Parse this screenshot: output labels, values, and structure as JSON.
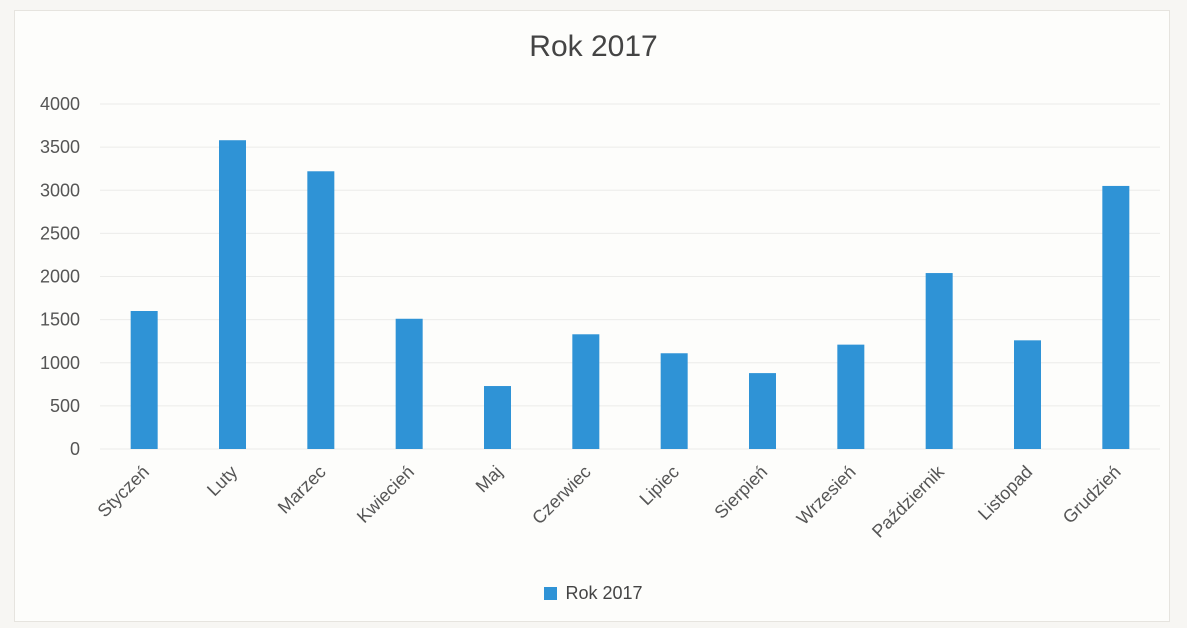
{
  "chart_data": {
    "type": "bar",
    "title": "Rok 2017",
    "categories": [
      "Styczeń",
      "Luty",
      "Marzec",
      "Kwiecień",
      "Maj",
      "Czerwiec",
      "Lipiec",
      "Sierpień",
      "Wrzesień",
      "Październik",
      "Listopad",
      "Grudzień"
    ],
    "series": [
      {
        "name": "Rok 2017",
        "values": [
          1600,
          3580,
          3220,
          1510,
          730,
          1330,
          1110,
          880,
          1210,
          2040,
          1260,
          3050
        ]
      }
    ],
    "ylim": [
      0,
      4000
    ],
    "yticks": [
      0,
      500,
      1000,
      1500,
      2000,
      2500,
      3000,
      3500,
      4000
    ],
    "grid": true,
    "legend_position": "bottom",
    "bar_color": "#2f93d6",
    "grid_color": "#ececea",
    "text_color": "#555555"
  }
}
